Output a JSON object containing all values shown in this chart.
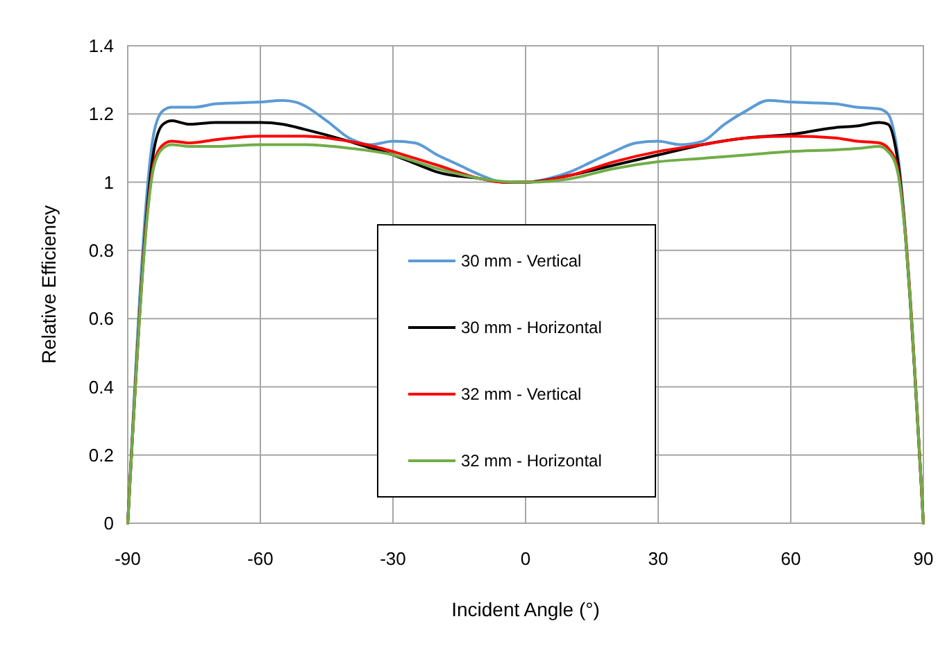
{
  "chart_data": {
    "type": "line",
    "xlabel": "Incident Angle (°)",
    "ylabel": "Relative Efficiency",
    "xlim": [
      -90,
      90
    ],
    "xticks": [
      -90,
      -60,
      -30,
      0,
      30,
      60,
      90
    ],
    "ylim": [
      0,
      1.4
    ],
    "yticks": [
      0,
      0.2,
      0.4,
      0.6,
      0.8,
      1,
      1.2,
      1.4
    ],
    "grid": true,
    "legend": "center",
    "marker": "none",
    "line_style": "solid",
    "series": [
      {
        "name": "30 mm - Vertical",
        "color": "#5b9bd5",
        "x": [
          -90,
          -84,
          -82,
          -80,
          -75,
          -70,
          -60,
          -55,
          -52,
          -45,
          -40,
          -35,
          -30,
          -25,
          -20,
          -15,
          -10,
          -5,
          0,
          5,
          10,
          15,
          20,
          25,
          30,
          35,
          40,
          45,
          50,
          55,
          60,
          70,
          75,
          80,
          82,
          84,
          90
        ],
        "values": [
          0,
          1.15,
          1.21,
          1.22,
          1.22,
          1.23,
          1.235,
          1.24,
          1.235,
          1.18,
          1.13,
          1.11,
          1.12,
          1.115,
          1.08,
          1.05,
          1.02,
          1.0,
          1.0,
          1.01,
          1.03,
          1.06,
          1.09,
          1.115,
          1.12,
          1.11,
          1.12,
          1.17,
          1.21,
          1.24,
          1.235,
          1.23,
          1.22,
          1.215,
          1.2,
          1.1,
          0
        ]
      },
      {
        "name": "30 mm - Horizontal",
        "color": "#000000",
        "x": [
          -90,
          -84,
          -82,
          -80,
          -76,
          -70,
          -60,
          -55,
          -50,
          -40,
          -35,
          -30,
          -25,
          -20,
          -10,
          -5,
          0,
          10,
          20,
          30,
          35,
          40,
          50,
          60,
          70,
          75,
          80,
          82,
          84,
          90
        ],
        "values": [
          0,
          1.1,
          1.17,
          1.18,
          1.17,
          1.175,
          1.175,
          1.17,
          1.155,
          1.12,
          1.1,
          1.08,
          1.055,
          1.03,
          1.01,
          1.0,
          1.0,
          1.02,
          1.05,
          1.08,
          1.095,
          1.11,
          1.13,
          1.14,
          1.16,
          1.165,
          1.175,
          1.17,
          1.08,
          0
        ]
      },
      {
        "name": "32 mm - Vertical",
        "color": "#ff0000",
        "x": [
          -90,
          -84,
          -82,
          -80,
          -76,
          -70,
          -60,
          -50,
          -40,
          -30,
          -25,
          -20,
          -10,
          -5,
          0,
          10,
          20,
          30,
          40,
          50,
          60,
          70,
          75,
          80,
          82,
          84,
          90
        ],
        "values": [
          0,
          1.06,
          1.11,
          1.12,
          1.115,
          1.125,
          1.135,
          1.135,
          1.12,
          1.09,
          1.07,
          1.05,
          1.01,
          1.0,
          1.0,
          1.02,
          1.06,
          1.09,
          1.11,
          1.13,
          1.135,
          1.13,
          1.12,
          1.115,
          1.1,
          1.05,
          0
        ]
      },
      {
        "name": "32 mm - Horizontal",
        "color": "#70ad47",
        "x": [
          -90,
          -84,
          -82,
          -80,
          -76,
          -70,
          -60,
          -50,
          -40,
          -30,
          -20,
          -10,
          0,
          10,
          20,
          30,
          40,
          50,
          60,
          70,
          76,
          80,
          82,
          84,
          90
        ],
        "values": [
          0,
          1.05,
          1.1,
          1.11,
          1.105,
          1.105,
          1.11,
          1.11,
          1.1,
          1.08,
          1.04,
          1.01,
          1.0,
          1.01,
          1.04,
          1.06,
          1.07,
          1.08,
          1.09,
          1.095,
          1.1,
          1.105,
          1.09,
          1.04,
          0
        ]
      }
    ]
  }
}
